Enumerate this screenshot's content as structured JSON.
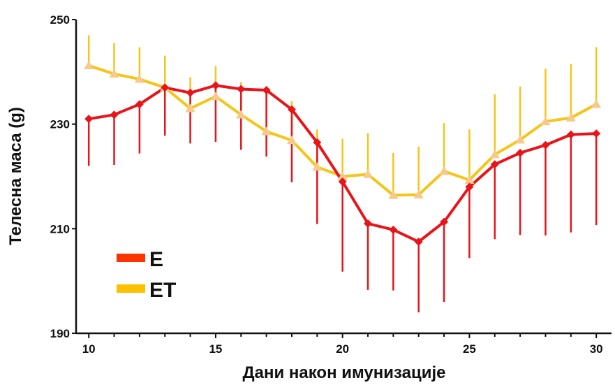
{
  "chart_data": {
    "type": "line",
    "xlabel": "Дани након имунизације",
    "ylabel": "Телесна маса (g)",
    "xlim": [
      9.5,
      30.6
    ],
    "ylim": [
      190,
      250
    ],
    "x_ticks": [
      10,
      15,
      20,
      25,
      30
    ],
    "y_ticks": [
      190,
      210,
      230,
      250
    ],
    "x_tick_labels": [
      "10",
      "15",
      "20",
      "25",
      "30"
    ],
    "y_tick_labels": [
      "190",
      "210",
      "230",
      "250"
    ],
    "grid": false,
    "legend_position": "lower-left",
    "x": [
      10,
      11,
      12,
      13,
      14,
      15,
      16,
      17,
      18,
      19,
      20,
      21,
      22,
      23,
      24,
      25,
      26,
      27,
      28,
      29,
      30
    ],
    "series": [
      {
        "name": "E",
        "line_color": "#e8141a",
        "legend_color": "#ff3300",
        "marker": "diamond",
        "marker_color": "#e8141a",
        "error_direction": "down",
        "values": [
          231.0,
          231.8,
          233.8,
          237.0,
          236.0,
          237.4,
          236.7,
          236.5,
          232.8,
          226.5,
          219.0,
          211.0,
          209.8,
          207.5,
          211.3,
          218.0,
          222.3,
          224.5,
          226.0,
          228.0,
          228.2
        ],
        "errors": [
          9.0,
          9.6,
          9.4,
          9.2,
          9.7,
          10.8,
          11.6,
          12.7,
          13.9,
          15.6,
          17.2,
          12.7,
          11.6,
          13.5,
          15.3,
          13.6,
          14.3,
          15.7,
          17.3,
          18.7,
          17.5
        ]
      },
      {
        "name": "ET",
        "line_color": "#f5c518",
        "legend_color": "#ffc000",
        "marker": "triangle",
        "marker_color": "#f7c98a",
        "error_direction": "up",
        "values": [
          241.2,
          239.6,
          238.6,
          237.0,
          233.0,
          235.3,
          231.8,
          228.6,
          226.9,
          221.8,
          220.0,
          220.4,
          216.4,
          216.5,
          221.0,
          219.3,
          224.2,
          227.0,
          230.5,
          231.2,
          233.8
        ],
        "errors": [
          5.8,
          5.9,
          6.1,
          6.1,
          6.0,
          5.8,
          6.2,
          7.4,
          7.5,
          7.2,
          7.2,
          7.9,
          8.1,
          9.2,
          9.2,
          9.7,
          11.5,
          10.2,
          10.1,
          10.3,
          10.9
        ]
      }
    ]
  }
}
